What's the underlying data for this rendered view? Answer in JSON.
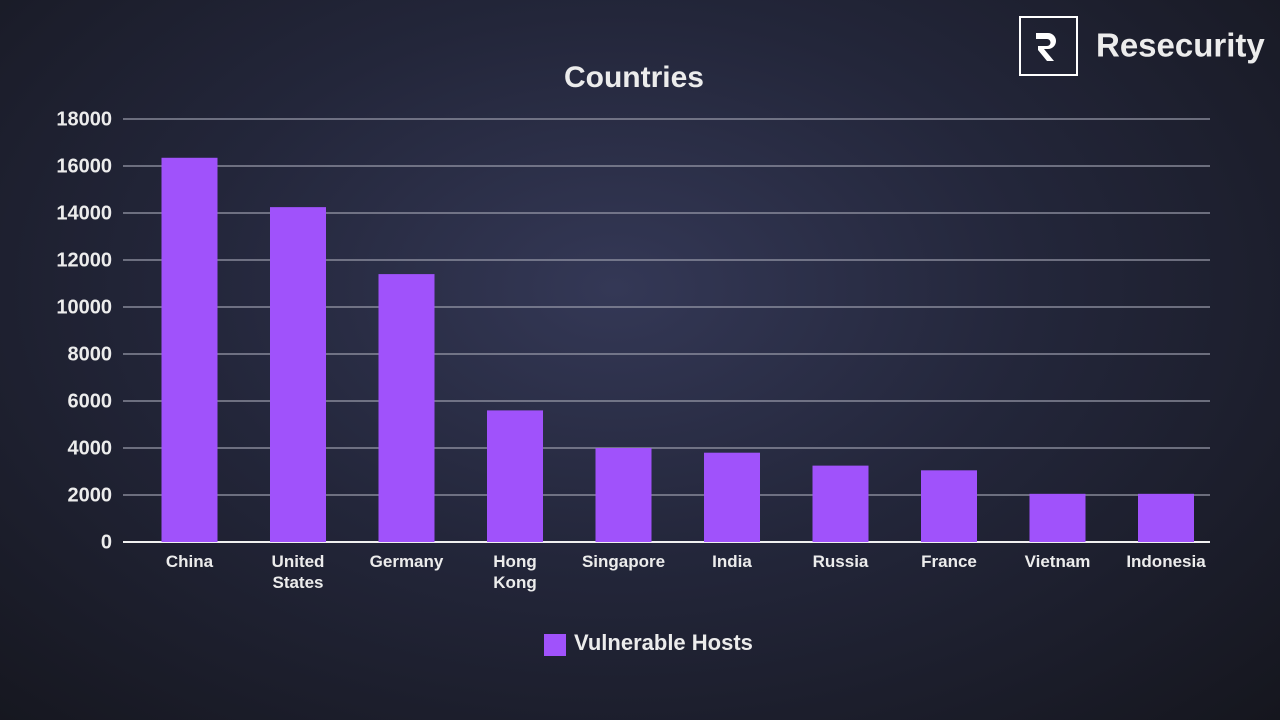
{
  "brand": "Resecurity",
  "chart_data": {
    "type": "bar",
    "title": "Countries",
    "categories": [
      "China",
      "United States",
      "Germany",
      "Hong Kong",
      "Singapore",
      "India",
      "Russia",
      "France",
      "Vietnam",
      "Indonesia"
    ],
    "series": [
      {
        "name": "Vulnerable Hosts",
        "color": "#a052fb",
        "values": [
          16350,
          14250,
          11400,
          5600,
          4000,
          3800,
          3250,
          3050,
          2050,
          2050
        ]
      }
    ],
    "ylim": [
      0,
      18000
    ],
    "yticks": [
      0,
      2000,
      4000,
      6000,
      8000,
      10000,
      12000,
      14000,
      16000,
      18000
    ],
    "grid": true,
    "legend": "bottom"
  }
}
